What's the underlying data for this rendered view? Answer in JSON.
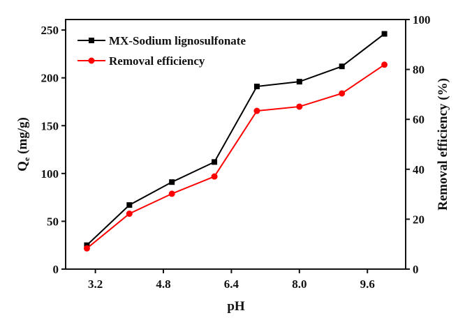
{
  "chart_data": {
    "type": "line",
    "xlabel": "pH",
    "ylabel_main": "Q",
    "ylabel_sub": "e",
    "ylabel_unit": " (mg/g)",
    "y2label": "Removal efficiency (%)",
    "xlim": [
      2.5,
      10.5
    ],
    "ylim": [
      0,
      261
    ],
    "y2lim": [
      0,
      100
    ],
    "xticks": [
      3.2,
      4.8,
      6.4,
      8.0,
      9.6
    ],
    "xtick_labels": [
      "3.2",
      "4.8",
      "6.4",
      "8.0",
      "9.6"
    ],
    "yticks": [
      0,
      50,
      100,
      150,
      200,
      250
    ],
    "y2ticks": [
      0,
      20,
      40,
      60,
      80,
      100
    ],
    "x": [
      3,
      4,
      5,
      6,
      7,
      8,
      9,
      10
    ],
    "series": [
      {
        "name": "MX-Sodium lignosulfonate",
        "axis": "left",
        "color": "#000000",
        "marker": "square",
        "values": [
          25,
          67,
          91,
          112,
          191,
          196,
          212,
          246
        ]
      },
      {
        "name": "Removal efficiency",
        "axis": "right",
        "color": "#ff0000",
        "marker": "circle",
        "values": [
          8.3,
          22.2,
          30.2,
          37.1,
          63.4,
          65.1,
          70.4,
          81.9
        ]
      }
    ],
    "legend_position": "top-left",
    "grid": false
  }
}
